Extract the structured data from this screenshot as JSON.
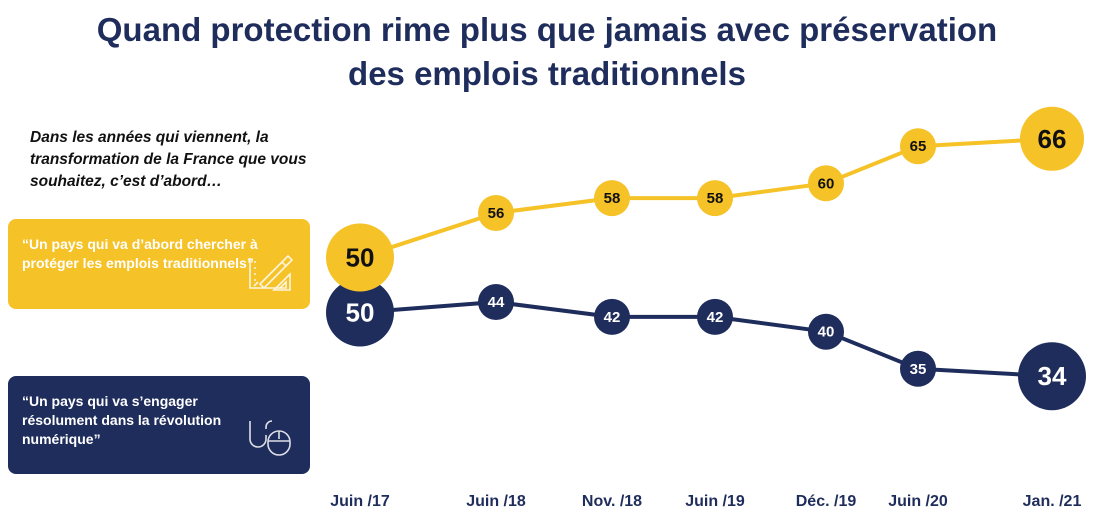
{
  "title_line1": "Quand protection rime plus que jamais avec préservation",
  "title_line2": "des emplois traditionnels",
  "question": "Dans les années qui viennent, la transformation de la France que vous souhaitez, c’est d’abord…",
  "box_yellow_text": "“Un pays qui va d’abord chercher à protéger les emplois traditionnels”",
  "box_navy_text": "“Un pays qui va s’engager résolument dans la révolution numérique”",
  "colors": {
    "yellow": "#f5c228",
    "navy": "#1f2d5c"
  },
  "icons": {
    "yellow_box": "drafting-tools-icon",
    "navy_box": "computer-mouse-icon"
  },
  "chart_data": {
    "type": "line",
    "categories": [
      "Juin /17",
      "Juin /18",
      "Nov. /18",
      "Juin /19",
      "Déc. /19",
      "Juin /20",
      "Jan. /21"
    ],
    "series": [
      {
        "name": "“Un pays qui va d’abord chercher à protéger les emplois traditionnels”",
        "values": [
          50,
          56,
          58,
          58,
          60,
          65,
          66
        ],
        "color": "#f5c228"
      },
      {
        "name": "“Un pays qui va s’engager résolument dans la révolution numérique”",
        "values": [
          50,
          44,
          42,
          42,
          40,
          35,
          34
        ],
        "color": "#1f2d5c"
      }
    ],
    "legend": "left",
    "grid": false
  }
}
